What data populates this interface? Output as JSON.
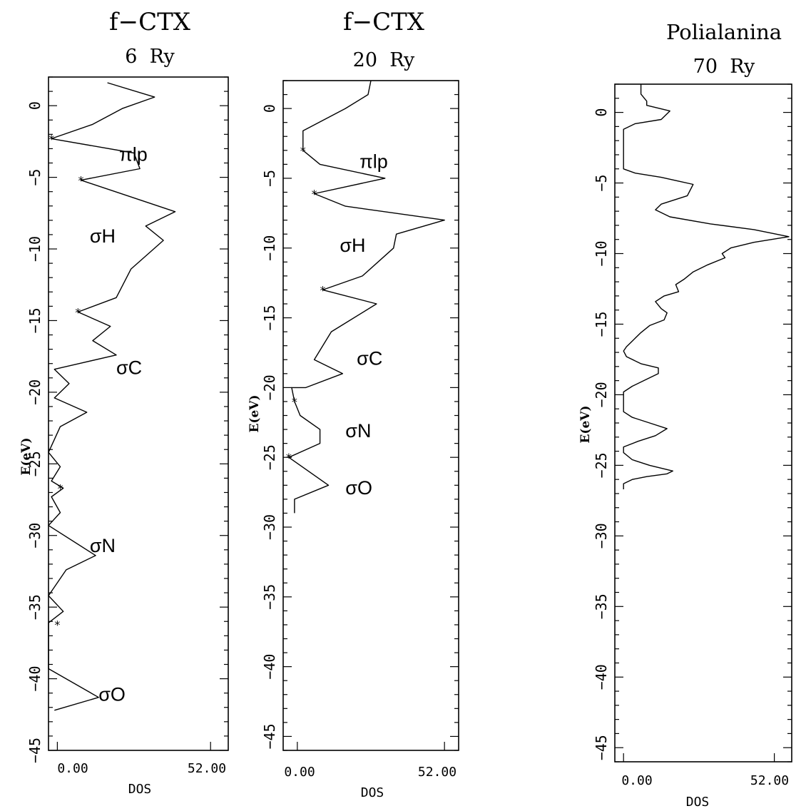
{
  "chart_data": [
    {
      "type": "line",
      "title": "f−CTX",
      "subtitle": "6  Ry",
      "ylabel": "E(eV)",
      "xlabel": "DOS",
      "xlim": [
        -3,
        58
      ],
      "ylim": [
        -45,
        2
      ],
      "yticks": [
        0,
        -5,
        -10,
        -15,
        -20,
        -25,
        -30,
        -35,
        -40,
        -45
      ],
      "ytick_labels": [
        "0",
        "−5",
        "−10",
        "−15",
        "−20",
        "−25",
        "−30",
        "−35",
        "−40",
        "−45"
      ],
      "xtick_labels": [
        "0.00",
        "52.00"
      ],
      "series": [
        {
          "points": [
            [
              17,
              1.6
            ],
            [
              33,
              0.6
            ],
            [
              22,
              -0.2
            ],
            [
              12,
              -1.3
            ],
            [
              -2,
              -2.3
            ],
            [
              26,
              -3.3
            ],
            [
              28,
              -4.4
            ],
            [
              8,
              -5.2
            ],
            [
              40,
              -7.4
            ],
            [
              30,
              -8.4
            ],
            [
              36,
              -9.4
            ],
            [
              25,
              -11.4
            ],
            [
              20,
              -13.4
            ],
            [
              7,
              -14.4
            ],
            [
              18,
              -15.4
            ],
            [
              12,
              -16.4
            ],
            [
              20,
              -17.4
            ],
            [
              -1,
              -18.4
            ],
            [
              4,
              -19.4
            ],
            [
              -1,
              -20.4
            ],
            [
              10,
              -21.4
            ],
            [
              1,
              -22.4
            ],
            [
              -3,
              -24.2
            ],
            [
              1,
              -25.2
            ],
            [
              -2,
              -26.2
            ],
            [
              2,
              -26.7
            ],
            [
              -2,
              -27.3
            ],
            [
              1,
              -28.4
            ],
            [
              -3,
              -29.3
            ],
            [
              13,
              -31.4
            ],
            [
              3,
              -32.4
            ],
            [
              -3,
              -34.2
            ],
            [
              2,
              -35.3
            ],
            [
              -3,
              -36.1
            ],
            [
              -3,
              -39.3
            ],
            [
              14,
              -41.3
            ],
            [
              -1,
              -42.2
            ]
          ]
        }
      ],
      "markers": [
        [
          -2,
          -2.3
        ],
        [
          8,
          -5.2
        ],
        [
          7,
          -14.4
        ],
        [
          1,
          -26.7
        ],
        [
          0,
          -36.2
        ]
      ],
      "annotations": [
        {
          "text": "πlp",
          "x": 21,
          "y": -3.4
        },
        {
          "text": "σH",
          "x": 11,
          "y": -9.1
        },
        {
          "text": "σC",
          "x": 20,
          "y": -18.3
        },
        {
          "text": "σN",
          "x": 11,
          "y": -30.7
        },
        {
          "text": "σO",
          "x": 14,
          "y": -41.1
        }
      ]
    },
    {
      "type": "line",
      "title": "f−CTX",
      "subtitle": "20  Ry",
      "ylabel": "E(eV)",
      "xlabel": "DOS",
      "xlim": [
        -5,
        57
      ],
      "ylim": [
        -46,
        2
      ],
      "yticks": [
        0,
        -5,
        -10,
        -15,
        -20,
        -25,
        -30,
        -35,
        -40,
        -45
      ],
      "ytick_labels": [
        "0",
        "−5",
        "−10",
        "−15",
        "−20",
        "−25",
        "−30",
        "−35",
        "−40",
        "−45"
      ],
      "xtick_labels": [
        "0.00",
        "52.00"
      ],
      "series": [
        {
          "points": [
            [
              26,
              2
            ],
            [
              25,
              1
            ],
            [
              17,
              0
            ],
            [
              2,
              -1.6
            ],
            [
              2,
              -3
            ],
            [
              8,
              -4
            ],
            [
              31,
              -5
            ],
            [
              6,
              -6.1
            ],
            [
              17,
              -7
            ],
            [
              52,
              -8
            ],
            [
              35,
              -9
            ],
            [
              34,
              -10
            ],
            [
              23,
              -12
            ],
            [
              9,
              -13
            ],
            [
              28,
              -14
            ],
            [
              12,
              -16
            ],
            [
              6,
              -18
            ],
            [
              16,
              -19
            ],
            [
              3,
              -20
            ],
            [
              -2,
              -20
            ],
            [
              -1,
              -21
            ],
            [
              1,
              -22
            ],
            [
              8,
              -23
            ],
            [
              8,
              -24
            ],
            [
              -3,
              -25
            ],
            [
              11,
              -27
            ],
            [
              -1,
              -28
            ],
            [
              -1,
              -29
            ]
          ]
        }
      ],
      "markers": [
        [
          2,
          -3
        ],
        [
          6,
          -6.1
        ],
        [
          9,
          -13
        ],
        [
          -1,
          -21
        ],
        [
          -3,
          -25
        ]
      ],
      "annotations": [
        {
          "text": "πlp",
          "x": 22,
          "y": -3.8
        },
        {
          "text": "σH",
          "x": 15,
          "y": -9.8
        },
        {
          "text": "σC",
          "x": 21,
          "y": -17.9
        },
        {
          "text": "σN",
          "x": 17,
          "y": -23.1
        },
        {
          "text": "σO",
          "x": 17,
          "y": -27.2
        }
      ]
    },
    {
      "type": "line",
      "title": "Polialanina",
      "subtitle": "70  Ry",
      "ylabel": "E(eV)",
      "xlabel": "DOS",
      "xlim": [
        -3,
        58
      ],
      "ylim": [
        -46,
        2
      ],
      "yticks": [
        0,
        -5,
        -10,
        -15,
        -20,
        -25,
        -30,
        -35,
        -40,
        -45
      ],
      "ytick_labels": [
        "0",
        "−5",
        "−10",
        "−15",
        "−20",
        "−25",
        "−30",
        "−35",
        "−40",
        "−45"
      ],
      "xtick_labels": [
        "0.00",
        "52.00"
      ],
      "series": [
        {
          "points": [
            [
              6,
              2
            ],
            [
              6,
              1.3
            ],
            [
              8,
              0.8
            ],
            [
              8,
              0.5
            ],
            [
              16,
              0.1
            ],
            [
              13,
              -0.5
            ],
            [
              4,
              -0.8
            ],
            [
              0,
              -1.2
            ],
            [
              0,
              -3
            ],
            [
              0,
              -4
            ],
            [
              4,
              -4.3
            ],
            [
              13,
              -4.6
            ],
            [
              24,
              -5.1
            ],
            [
              22,
              -5.9
            ],
            [
              13,
              -6.5
            ],
            [
              11,
              -6.9
            ],
            [
              16,
              -7.4
            ],
            [
              30,
              -7.9
            ],
            [
              45,
              -8.3
            ],
            [
              57,
              -8.8
            ],
            [
              45,
              -9.2
            ],
            [
              37,
              -9.6
            ],
            [
              34,
              -10.0
            ],
            [
              35,
              -10.3
            ],
            [
              29,
              -10.8
            ],
            [
              24,
              -11.3
            ],
            [
              21,
              -11.8
            ],
            [
              18,
              -12.2
            ],
            [
              19,
              -12.7
            ],
            [
              14,
              -13.0
            ],
            [
              11,
              -13.4
            ],
            [
              13,
              -13.9
            ],
            [
              15,
              -14.2
            ],
            [
              14,
              -14.7
            ],
            [
              9,
              -15.1
            ],
            [
              6,
              -15.6
            ],
            [
              3,
              -16.2
            ],
            [
              1,
              -16.6
            ],
            [
              0,
              -16.9
            ],
            [
              1,
              -17.3
            ],
            [
              6,
              -17.8
            ],
            [
              12,
              -18.1
            ],
            [
              12,
              -18.5
            ],
            [
              8,
              -18.9
            ],
            [
              3,
              -19.4
            ],
            [
              0,
              -19.8
            ],
            [
              0,
              -20.5
            ],
            [
              0,
              -21.2
            ],
            [
              3,
              -21.6
            ],
            [
              9,
              -22.0
            ],
            [
              15,
              -22.4
            ],
            [
              11,
              -22.9
            ],
            [
              5,
              -23.3
            ],
            [
              0,
              -23.7
            ],
            [
              0,
              -24.1
            ],
            [
              3,
              -24.6
            ],
            [
              9,
              -25.0
            ],
            [
              17,
              -25.4
            ],
            [
              15,
              -25.6
            ],
            [
              8,
              -25.8
            ],
            [
              3,
              -26.0
            ],
            [
              0,
              -26.3
            ],
            [
              0,
              -26.7
            ]
          ]
        }
      ],
      "markers": [],
      "annotations": []
    }
  ]
}
